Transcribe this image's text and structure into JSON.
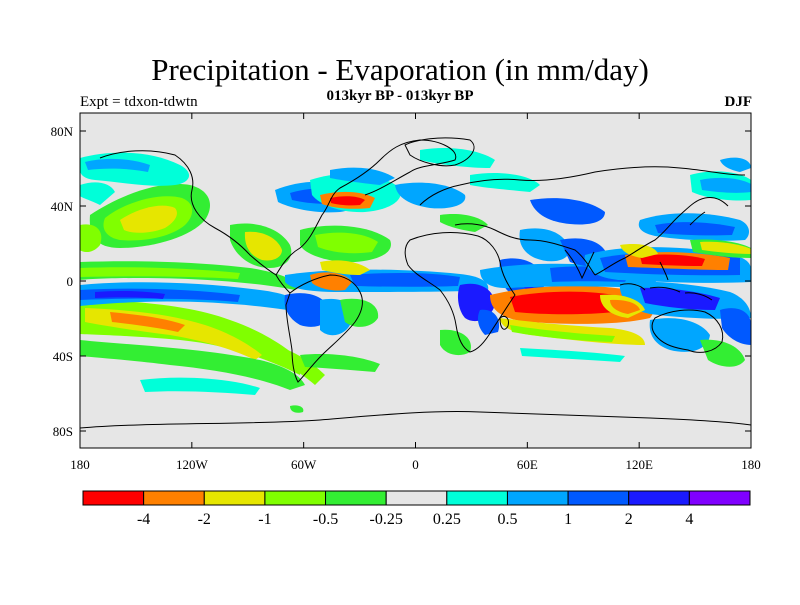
{
  "title": "Precipitation - Evaporation (in mm/day)",
  "subtitle": "013kyr BP - 013kyr BP",
  "left_label": "Expt = tdxon-tdwtn",
  "right_label": "DJF",
  "lat_labels": [
    "80N",
    "40N",
    "0",
    "40S",
    "80S"
  ],
  "lon_labels": [
    "180",
    "120W",
    "60W",
    "0",
    "60E",
    "120E",
    "180"
  ],
  "legend": {
    "colors": [
      "#ff0000",
      "#ff8000",
      "#e6e600",
      "#80ff00",
      "#33ee33",
      "#e6e6e6",
      "#00ffd9",
      "#00a6ff",
      "#0059ff",
      "#1a1aff",
      "#8000ff"
    ],
    "labels": [
      "-4",
      "-2",
      "-1",
      "-0.5",
      "-0.25",
      "0.25",
      "0.5",
      "1",
      "2",
      "4"
    ]
  }
}
